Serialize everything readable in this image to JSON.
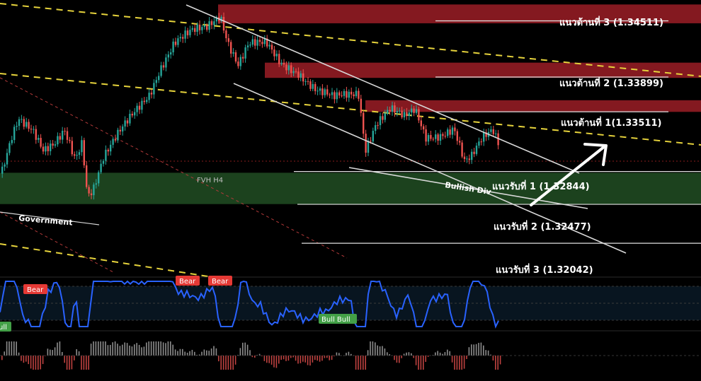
{
  "chart_data": {
    "type": "candlestick",
    "title": "",
    "colors": {
      "background": "#000000",
      "bull": "#26a69a",
      "bear": "#ef5350",
      "resistance_zone": "#8b1a22",
      "support_zone": "#1e4620",
      "trend_line": "#d8d8d8",
      "dashed_channel": "#e6d33c",
      "rsi_line": "#2962ff",
      "bear_badge": "#e53935",
      "bull_badge": "#43a047"
    },
    "y_range": [
      1.3168,
      1.3476
    ],
    "resistance_levels": [
      {
        "label": "แนวต้านที่ 3 (1.34511)",
        "value": 1.34511
      },
      {
        "label": "แนวต้านที่ 2 (1.33899)",
        "value": 1.33899
      },
      {
        "label": "แนวต้านที่ 1(1.33511)",
        "value": 1.33511
      }
    ],
    "support_levels": [
      {
        "label": "แนวรับที่ 1 (1.32844)",
        "value": 1.32844
      },
      {
        "label": "แนวรับที่ 2 (1.32477)",
        "value": 1.32477
      },
      {
        "label": "แนวรับที่ 3 (1.32042)",
        "value": 1.32042
      }
    ],
    "zones": [
      {
        "kind": "resistance",
        "from": 1.345,
        "to": 1.3471
      },
      {
        "kind": "resistance",
        "from": 1.3389,
        "to": 1.3406
      },
      {
        "kind": "resistance",
        "from": 1.3351,
        "to": 1.3364
      },
      {
        "kind": "support",
        "from": 1.3248,
        "to": 1.3283
      }
    ],
    "annotations": [
      {
        "text": "FVH H4"
      },
      {
        "text": "Government"
      },
      {
        "text": "Bullish Div"
      }
    ],
    "rsi_badges": [
      {
        "text": "Bear",
        "type": "bear"
      },
      {
        "text": "Bear",
        "type": "bear"
      },
      {
        "text": "Bear",
        "type": "bear"
      },
      {
        "text": "Bull Bull",
        "type": "bull"
      },
      {
        "text": "ull",
        "type": "bull"
      }
    ]
  }
}
